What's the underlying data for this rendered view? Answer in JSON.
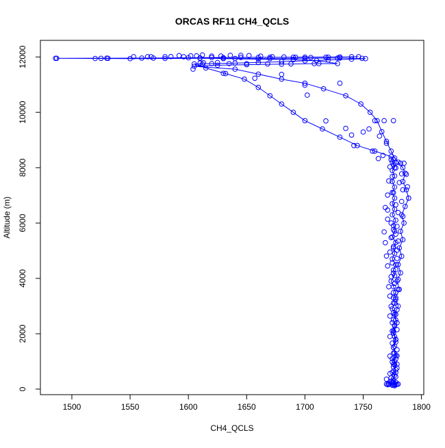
{
  "chart_data": {
    "type": "line",
    "title": "ORCAS RF11 CH4_QCLS",
    "xlabel": "CH4_QCLS",
    "ylabel": "Altitude (m)",
    "xlim": [
      1473,
      1802
    ],
    "ylim": [
      -200,
      12600
    ],
    "x_ticks": [
      1500,
      1550,
      1600,
      1650,
      1700,
      1750,
      1800
    ],
    "y_ticks": [
      0,
      2000,
      4000,
      6000,
      8000,
      10000,
      12000
    ],
    "grid": false,
    "legend": "none",
    "series": [
      {
        "line_points": [
          [
            1770,
            180
          ],
          [
            1772,
            200
          ],
          [
            1774,
            210
          ],
          [
            1776,
            230
          ],
          [
            1778,
            250
          ],
          [
            1776,
            300
          ],
          [
            1774,
            400
          ],
          [
            1777,
            500
          ],
          [
            1775,
            600
          ],
          [
            1778,
            700
          ],
          [
            1776,
            800
          ],
          [
            1779,
            900
          ],
          [
            1777,
            1000
          ],
          [
            1775,
            1100
          ],
          [
            1779,
            1200
          ],
          [
            1777,
            1300
          ],
          [
            1776,
            1500
          ],
          [
            1778,
            1700
          ],
          [
            1777,
            1900
          ],
          [
            1775,
            2100
          ],
          [
            1777,
            2300
          ],
          [
            1776,
            2500
          ],
          [
            1778,
            2700
          ],
          [
            1775,
            2900
          ],
          [
            1777,
            3100
          ],
          [
            1776,
            3300
          ],
          [
            1778,
            3500
          ],
          [
            1776,
            3700
          ],
          [
            1774,
            3900
          ],
          [
            1777,
            4100
          ],
          [
            1776,
            4300
          ],
          [
            1778,
            4500
          ],
          [
            1775,
            4700
          ],
          [
            1777,
            4900
          ],
          [
            1776,
            5100
          ],
          [
            1778,
            5300
          ],
          [
            1775,
            5500
          ],
          [
            1777,
            5700
          ],
          [
            1776,
            5900
          ],
          [
            1778,
            6100
          ],
          [
            1775,
            6300
          ],
          [
            1777,
            6500
          ],
          [
            1775,
            6700
          ],
          [
            1777,
            6900
          ],
          [
            1775,
            7100
          ],
          [
            1777,
            7300
          ],
          [
            1775,
            7500
          ],
          [
            1777,
            7700
          ],
          [
            1775,
            7900
          ],
          [
            1777,
            8000
          ],
          [
            1776,
            8100
          ],
          [
            1775,
            8200
          ],
          [
            1776,
            8300
          ],
          [
            1774,
            8400
          ],
          [
            1760,
            8600
          ],
          [
            1745,
            8800
          ],
          [
            1730,
            9100
          ],
          [
            1715,
            9400
          ],
          [
            1700,
            9700
          ],
          [
            1690,
            10000
          ],
          [
            1680,
            10300
          ],
          [
            1670,
            10600
          ],
          [
            1660,
            10900
          ],
          [
            1648,
            11200
          ],
          [
            1632,
            11400
          ],
          [
            1615,
            11600
          ],
          [
            1605,
            11750
          ],
          [
            1620,
            11760
          ],
          [
            1640,
            11780
          ],
          [
            1660,
            11800
          ],
          [
            1680,
            11830
          ],
          [
            1700,
            11860
          ],
          [
            1720,
            11890
          ],
          [
            1740,
            11920
          ],
          [
            1752,
            11940
          ],
          [
            1730,
            11960
          ],
          [
            1700,
            11950
          ],
          [
            1670,
            11940
          ],
          [
            1640,
            11945
          ],
          [
            1610,
            11950
          ],
          [
            1580,
            11945
          ],
          [
            1550,
            11940
          ],
          [
            1520,
            11945
          ],
          [
            1487,
            11950
          ],
          [
            1530,
            11955
          ],
          [
            1570,
            11960
          ],
          [
            1600,
            11970
          ],
          [
            1620,
            11980
          ],
          [
            1645,
            11985
          ],
          [
            1670,
            11990
          ],
          [
            1700,
            11995
          ],
          [
            1730,
            12000
          ],
          [
            1746,
            12010
          ],
          [
            1720,
            11995
          ],
          [
            1690,
            11990
          ],
          [
            1660,
            11985
          ],
          [
            1630,
            11975
          ],
          [
            1610,
            11965
          ],
          [
            1630,
            11940
          ],
          [
            1660,
            11920
          ],
          [
            1690,
            11900
          ],
          [
            1710,
            11870
          ],
          [
            1728,
            11760
          ],
          [
            1708,
            11760
          ],
          [
            1680,
            11740
          ],
          [
            1650,
            11720
          ],
          [
            1625,
            11700
          ],
          [
            1605,
            11660
          ],
          [
            1640,
            11560
          ],
          [
            1660,
            11380
          ],
          [
            1680,
            11200
          ],
          [
            1700,
            11050
          ],
          [
            1716,
            10850
          ],
          [
            1735,
            10600
          ],
          [
            1748,
            10300
          ],
          [
            1756,
            10000
          ],
          [
            1762,
            9700
          ],
          [
            1766,
            9300
          ],
          [
            1770,
            8950
          ],
          [
            1774,
            8600
          ],
          [
            1777,
            8350
          ],
          [
            1780,
            8200
          ],
          [
            1784,
            8000
          ],
          [
            1786,
            7800
          ],
          [
            1784,
            7500
          ],
          [
            1787,
            7200
          ],
          [
            1789,
            6900
          ],
          [
            1786,
            6600
          ],
          [
            1783,
            6300
          ],
          [
            1785,
            6000
          ],
          [
            1782,
            5700
          ],
          [
            1784,
            5400
          ],
          [
            1781,
            5100
          ],
          [
            1783,
            4800
          ],
          [
            1780,
            4500
          ],
          [
            1782,
            4200
          ],
          [
            1779,
            3900
          ],
          [
            1781,
            3600
          ],
          [
            1778,
            3300
          ],
          [
            1780,
            3000
          ],
          [
            1777,
            2700
          ],
          [
            1779,
            2400
          ],
          [
            1776,
            2100
          ],
          [
            1778,
            1800
          ],
          [
            1776,
            1500
          ],
          [
            1778,
            1200
          ],
          [
            1776,
            900
          ],
          [
            1778,
            600
          ],
          [
            1776,
            300
          ],
          [
            1777,
            180
          ]
        ],
        "extra_points": [
          [
            1486,
            11950
          ],
          [
            1525,
            11950
          ],
          [
            1531,
            11950
          ],
          [
            1553,
            12010
          ],
          [
            1560,
            11960
          ],
          [
            1565,
            12010
          ],
          [
            1568,
            12010
          ],
          [
            1580,
            12010
          ],
          [
            1585,
            12015
          ],
          [
            1592,
            12050
          ],
          [
            1596,
            12010
          ],
          [
            1602,
            12040
          ],
          [
            1607,
            12040
          ],
          [
            1612,
            12070
          ],
          [
            1620,
            12030
          ],
          [
            1628,
            12035
          ],
          [
            1636,
            12060
          ],
          [
            1645,
            12060
          ],
          [
            1652,
            12050
          ],
          [
            1662,
            12030
          ],
          [
            1672,
            12010
          ],
          [
            1682,
            12000
          ],
          [
            1692,
            11990
          ],
          [
            1705,
            11980
          ],
          [
            1718,
            11990
          ],
          [
            1728,
            11960
          ],
          [
            1740,
            12010
          ],
          [
            1749,
            11950
          ],
          [
            1610,
            11780
          ],
          [
            1613,
            11790
          ],
          [
            1625,
            11800
          ],
          [
            1635,
            11760
          ],
          [
            1650,
            11760
          ],
          [
            1668,
            11750
          ],
          [
            1688,
            11750
          ],
          [
            1712,
            11760
          ],
          [
            1604,
            11560
          ],
          [
            1612,
            11740
          ],
          [
            1630,
            11410
          ],
          [
            1657,
            11230
          ],
          [
            1680,
            11370
          ],
          [
            1700,
            10980
          ],
          [
            1702,
            10620
          ],
          [
            1730,
            11050
          ],
          [
            1718,
            9690
          ],
          [
            1735,
            9420
          ],
          [
            1740,
            9180
          ],
          [
            1742,
            8800
          ],
          [
            1750,
            9290
          ],
          [
            1755,
            9400
          ],
          [
            1760,
            9700
          ],
          [
            1768,
            9700
          ],
          [
            1776,
            9700
          ],
          [
            1764,
            9140
          ],
          [
            1770,
            8880
          ],
          [
            1758,
            8600
          ],
          [
            1767,
            8440
          ],
          [
            1763,
            8330
          ],
          [
            1774,
            8290
          ],
          [
            1778,
            8180
          ],
          [
            1782,
            8160
          ],
          [
            1785,
            8160
          ],
          [
            1773,
            8030
          ],
          [
            1778,
            7990
          ],
          [
            1783,
            7780
          ],
          [
            1787,
            7760
          ],
          [
            1775,
            7680
          ],
          [
            1772,
            7520
          ],
          [
            1781,
            7460
          ],
          [
            1788,
            7310
          ],
          [
            1784,
            7200
          ],
          [
            1776,
            7100
          ],
          [
            1771,
            7010
          ],
          [
            1789,
            6900
          ],
          [
            1783,
            6780
          ],
          [
            1778,
            6660
          ],
          [
            1769,
            6560
          ],
          [
            1771,
            6470
          ],
          [
            1780,
            6380
          ],
          [
            1784,
            6240
          ],
          [
            1771,
            6140
          ],
          [
            1774,
            6000
          ],
          [
            1779,
            5880
          ],
          [
            1776,
            5760
          ],
          [
            1768,
            5680
          ],
          [
            1778,
            5600
          ],
          [
            1774,
            5470
          ],
          [
            1780,
            5350
          ],
          [
            1769,
            5290
          ],
          [
            1776,
            5150
          ],
          [
            1779,
            5020
          ],
          [
            1773,
            4950
          ],
          [
            1770,
            4810
          ],
          [
            1779,
            4720
          ],
          [
            1775,
            4560
          ],
          [
            1771,
            4450
          ],
          [
            1778,
            4320
          ],
          [
            1776,
            4190
          ],
          [
            1774,
            4060
          ],
          [
            1780,
            3960
          ],
          [
            1777,
            3820
          ],
          [
            1772,
            3700
          ],
          [
            1780,
            3600
          ],
          [
            1776,
            3490
          ],
          [
            1773,
            3360
          ],
          [
            1778,
            3240
          ],
          [
            1776,
            3110
          ],
          [
            1774,
            2990
          ],
          [
            1779,
            2870
          ],
          [
            1776,
            2760
          ],
          [
            1773,
            2640
          ],
          [
            1778,
            2500
          ],
          [
            1775,
            2400
          ],
          [
            1777,
            2270
          ],
          [
            1779,
            2150
          ],
          [
            1776,
            2030
          ],
          [
            1773,
            1900
          ],
          [
            1778,
            1790
          ],
          [
            1775,
            1660
          ],
          [
            1777,
            1550
          ],
          [
            1779,
            1420
          ],
          [
            1776,
            1300
          ],
          [
            1773,
            1190
          ],
          [
            1778,
            1090
          ],
          [
            1775,
            980
          ],
          [
            1777,
            870
          ],
          [
            1779,
            760
          ],
          [
            1776,
            650
          ],
          [
            1773,
            560
          ],
          [
            1778,
            450
          ],
          [
            1770,
            360
          ],
          [
            1774,
            280
          ],
          [
            1779,
            170
          ],
          [
            1771,
            160
          ],
          [
            1776,
            140
          ],
          [
            1777,
            120
          ],
          [
            1775,
            140
          ],
          [
            1778,
            160
          ],
          [
            1772,
            170
          ],
          [
            1780,
            180
          ]
        ]
      }
    ],
    "colors": {
      "series": "#0000ff",
      "axis": "#000000",
      "background": "#ffffff"
    }
  }
}
